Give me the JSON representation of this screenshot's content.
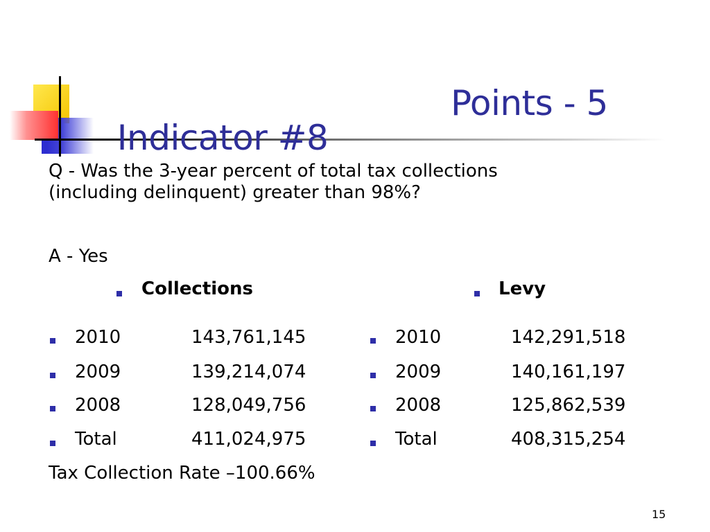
{
  "slide": {
    "title": "Indicator #8",
    "points": "Points - 5",
    "question_line1": "Q - Was the 3-year percent of total tax collections",
    "question_line2": "(including delinquent) greater than 98%?",
    "answer": "A - Yes",
    "page_number": "15"
  },
  "collections": {
    "heading": "Collections",
    "rows": [
      {
        "year": "2010",
        "amount": "143,761,145"
      },
      {
        "year": "2009",
        "amount": "139,214,074"
      },
      {
        "year": "2008",
        "amount": "128,049,756"
      },
      {
        "year": "Total",
        "amount": "411,024,975"
      }
    ]
  },
  "levy": {
    "heading": "Levy",
    "rows": [
      {
        "year": "2010",
        "amount": "142,291,518"
      },
      {
        "year": "2009",
        "amount": "140,161,197"
      },
      {
        "year": "2008",
        "amount": "125,862,539"
      },
      {
        "year": "Total",
        "amount": "408,315,254"
      }
    ]
  },
  "rate": "Tax Collection Rate –100.66%",
  "colors": {
    "title": "#2e2e98",
    "bullet": "#2e2ea8"
  }
}
